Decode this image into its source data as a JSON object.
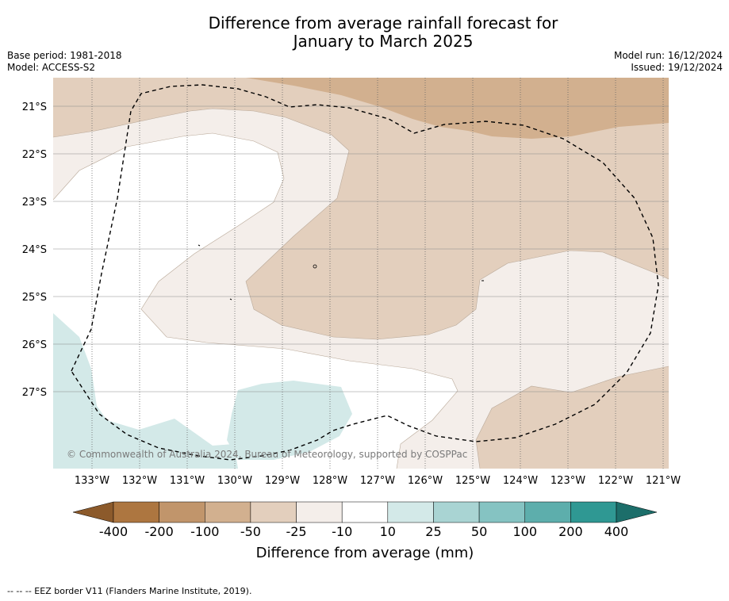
{
  "title": {
    "line1": "Difference from average rainfall forecast for",
    "line2": "January to March 2025"
  },
  "meta": {
    "base_period": "Base period: 1981-2018",
    "model": "Model: ACCESS-S2",
    "model_run": "Model run: 16/12/2024",
    "issued": "Issued: 19/12/2024"
  },
  "map": {
    "lat_labels": [
      "21°S",
      "22°S",
      "23°S",
      "24°S",
      "25°S",
      "26°S",
      "27°S"
    ],
    "lon_labels": [
      "133°W",
      "132°W",
      "131°W",
      "130°W",
      "129°W",
      "128°W",
      "127°W",
      "126°W",
      "125°W",
      "124°W",
      "123°W",
      "122°W",
      "121°W"
    ],
    "copyright": "© Commonwealth of Australia 2024, Bureau of Meteorology, supported by COSPPac"
  },
  "colorbar": {
    "ticks": [
      "-400",
      "-200",
      "-100",
      "-50",
      "-25",
      "-10",
      "10",
      "25",
      "50",
      "100",
      "200",
      "400"
    ],
    "colors": [
      "#8c5a2b",
      "#ad7640",
      "#c1956b",
      "#d2b08f",
      "#e3cfbd",
      "#f4eeea",
      "#ffffff",
      "#d3e9e8",
      "#a9d4d3",
      "#85c3c2",
      "#5daeac",
      "#2f9893",
      "#1c6e6a"
    ],
    "title": "Difference from average (mm)"
  },
  "footnote": "--  --  -- EEZ border V11 (Flanders Marine Institute, 2019)."
}
